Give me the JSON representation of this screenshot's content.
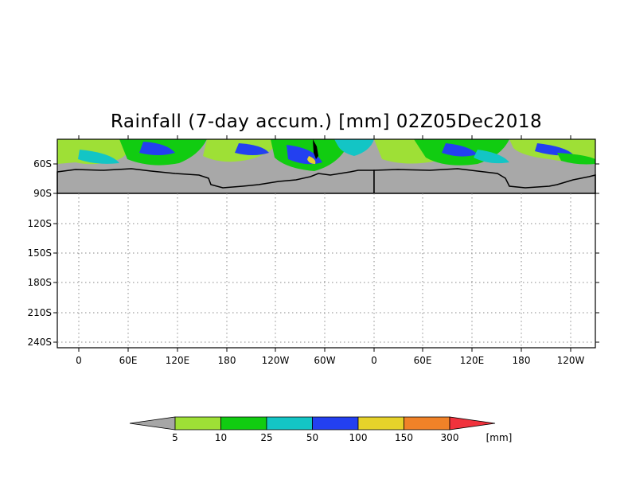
{
  "title": "Rainfall (7-day accum.) [mm] 02Z05Dec2018",
  "map": {
    "lat_labels": [
      "60S",
      "90S",
      "120S",
      "150S",
      "180S",
      "210S",
      "240S"
    ],
    "lon_labels": [
      "0",
      "60E",
      "120E",
      "180",
      "120W",
      "60W",
      "0",
      "60E",
      "120E",
      "180",
      "120W"
    ],
    "ocean_color": "#a8a8a8",
    "frame_color": "#000000",
    "grid": true
  },
  "colorbar": {
    "unit": "[mm]",
    "labels": [
      "5",
      "10",
      "25",
      "50",
      "100",
      "150",
      "300"
    ],
    "colors": [
      "#a6a6a6",
      "#9ee036",
      "#11cc11",
      "#13c5c5",
      "#2340f0",
      "#e6d22a",
      "#f08228",
      "#f0323c"
    ]
  },
  "colors": {
    "land_outline": "#000000",
    "rain_light": "#9ee036",
    "rain_mid": "#11cc11",
    "rain_heavy": "#2340f0"
  }
}
